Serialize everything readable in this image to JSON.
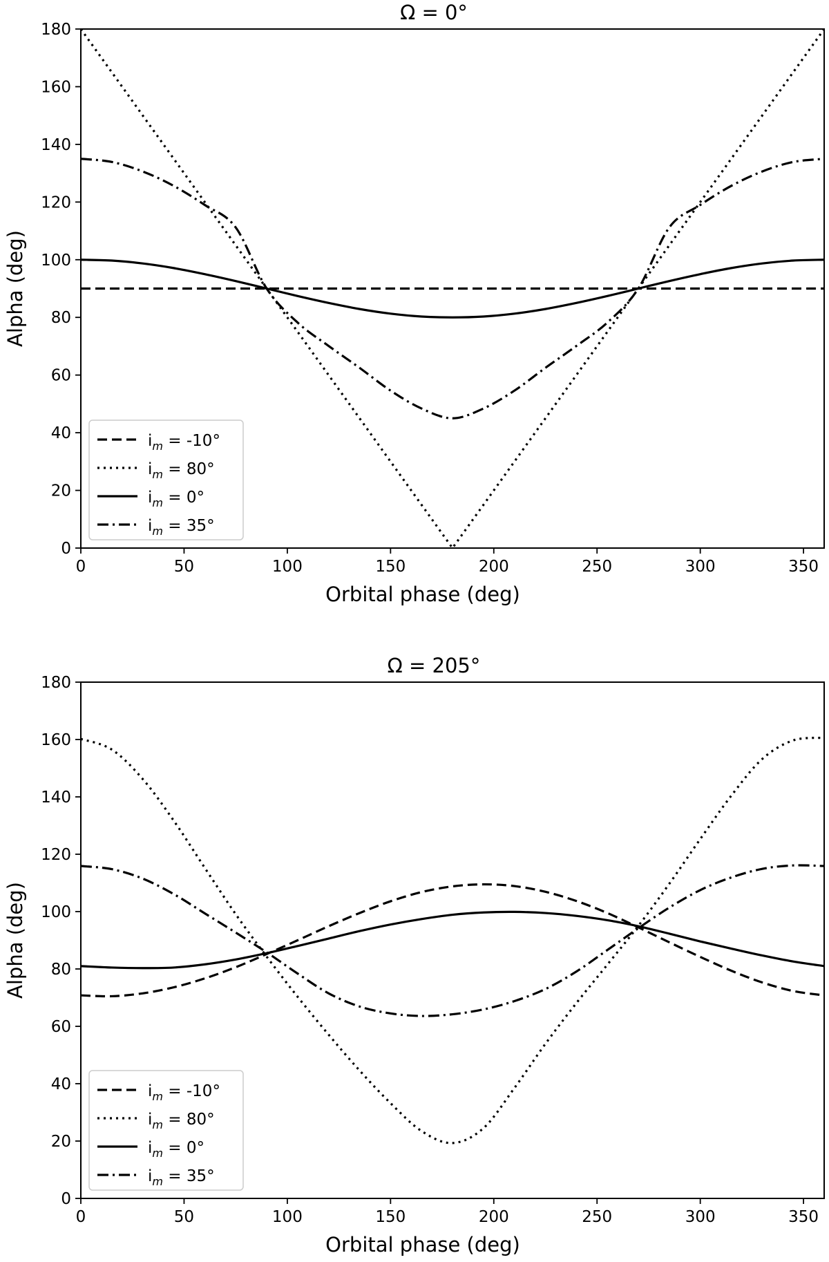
{
  "chart_data": [
    {
      "type": "line",
      "title": "Ω = 0°",
      "xlabel": "Orbital phase (deg)",
      "ylabel": "Alpha (deg)",
      "xlim": [
        0,
        360
      ],
      "ylim": [
        0,
        180
      ],
      "xticks": [
        0,
        50,
        100,
        150,
        200,
        250,
        300,
        350
      ],
      "yticks": [
        0,
        20,
        40,
        60,
        80,
        100,
        120,
        140,
        160,
        180
      ],
      "grid": false,
      "legend_position": "lower-left",
      "x": [
        0,
        15,
        30,
        45,
        60,
        75,
        90,
        105,
        120,
        135,
        150,
        165,
        180,
        195,
        210,
        225,
        240,
        255,
        270,
        285,
        300,
        315,
        330,
        345,
        360
      ],
      "series": [
        {
          "name": "i_m = -10°",
          "legend_main": "i",
          "legend_sub": "m",
          "legend_rest": " = -10°",
          "style": "dashed",
          "values": [
            90,
            90,
            90,
            90,
            90,
            90,
            90,
            90,
            90,
            90,
            90,
            90,
            90,
            90,
            90,
            90,
            90,
            90,
            90,
            90,
            90,
            90,
            90,
            90,
            90
          ]
        },
        {
          "name": "i_m = 80°",
          "legend_main": "i",
          "legend_sub": "m",
          "legend_rest": " = 80°",
          "style": "dotted",
          "values": [
            180,
            165,
            150,
            135,
            120,
            105,
            90,
            75,
            60,
            45,
            30,
            15,
            0,
            15,
            30,
            45,
            60,
            75,
            90,
            105,
            120,
            135,
            150,
            165,
            180
          ]
        },
        {
          "name": "i_m = 0°",
          "legend_main": "i",
          "legend_sub": "m",
          "legend_rest": " = 0°",
          "style": "solid",
          "values": [
            100,
            99.7,
            98.7,
            97.1,
            95.0,
            92.6,
            90,
            87.4,
            85.0,
            82.9,
            81.3,
            80.3,
            80,
            80.3,
            81.3,
            82.9,
            85.0,
            87.4,
            90,
            92.6,
            95.0,
            97.1,
            98.7,
            99.7,
            100
          ]
        },
        {
          "name": "i_m = 35°",
          "legend_main": "i",
          "legend_sub": "m",
          "legend_rest": " = 35°",
          "style": "dashdot",
          "values": [
            135,
            133.9,
            130.6,
            125.6,
            119.0,
            111.2,
            90,
            78.2,
            70.1,
            62.5,
            54.6,
            48.4,
            45,
            48.4,
            54.6,
            62.5,
            70.1,
            78.2,
            90,
            111.2,
            119.0,
            125.6,
            130.6,
            133.9,
            135
          ]
        }
      ]
    },
    {
      "type": "line",
      "title": "Ω = 205°",
      "xlabel": "Orbital phase (deg)",
      "ylabel": "Alpha (deg)",
      "xlim": [
        0,
        360
      ],
      "ylim": [
        0,
        180
      ],
      "xticks": [
        0,
        50,
        100,
        150,
        200,
        250,
        300,
        350
      ],
      "yticks": [
        0,
        20,
        40,
        60,
        80,
        100,
        120,
        140,
        160,
        180
      ],
      "grid": false,
      "legend_position": "lower-left",
      "x": [
        0,
        15,
        30,
        45,
        60,
        75,
        90,
        105,
        120,
        135,
        150,
        165,
        180,
        195,
        210,
        225,
        240,
        255,
        270,
        285,
        300,
        315,
        330,
        345,
        360
      ],
      "series": [
        {
          "name": "i_m = -10°",
          "legend_main": "i",
          "legend_sub": "m",
          "legend_rest": " = -10°",
          "style": "dashed",
          "values": [
            70.8,
            70.5,
            71.5,
            73.6,
            76.7,
            80.6,
            85.2,
            90.0,
            94.9,
            99.5,
            103.6,
            106.8,
            108.8,
            109.5,
            108.9,
            106.9,
            103.7,
            99.5,
            94.5,
            89.3,
            84.2,
            79.4,
            75.3,
            72.3,
            70.8
          ]
        },
        {
          "name": "i_m = 80°",
          "legend_main": "i",
          "legend_sub": "m",
          "legend_rest": " = 80°",
          "style": "dotted",
          "values": [
            160.2,
            156.5,
            146.2,
            131.7,
            115.3,
            99.1,
            84.3,
            70.3,
            57.1,
            44.6,
            33.2,
            23.5,
            19.3,
            24.5,
            38.5,
            53.9,
            68.1,
            81.5,
            95.0,
            109.7,
            125.3,
            140.4,
            153.2,
            159.7,
            160.6
          ]
        },
        {
          "name": "i_m = 0°",
          "legend_main": "i",
          "legend_sub": "m",
          "legend_rest": " = 0°",
          "style": "solid",
          "values": [
            81.0,
            80.5,
            80.3,
            80.5,
            81.6,
            83.3,
            85.5,
            88.0,
            90.6,
            93.2,
            95.5,
            97.4,
            98.9,
            99.7,
            99.9,
            99.5,
            98.5,
            97.0,
            94.9,
            92.3,
            89.6,
            87.1,
            84.7,
            82.6,
            81.0
          ]
        },
        {
          "name": "i_m = 35°",
          "legend_main": "i",
          "legend_sub": "m",
          "legend_rest": " = 35°",
          "style": "dashdot",
          "values": [
            115.9,
            114.8,
            111.5,
            106.1,
            99.4,
            92.7,
            85.8,
            78.4,
            71.5,
            66.9,
            64.5,
            63.6,
            64.2,
            65.9,
            68.8,
            73.0,
            79.1,
            86.6,
            94.2,
            101.4,
            107.5,
            111.9,
            114.9,
            116.1,
            115.9
          ]
        }
      ]
    }
  ]
}
